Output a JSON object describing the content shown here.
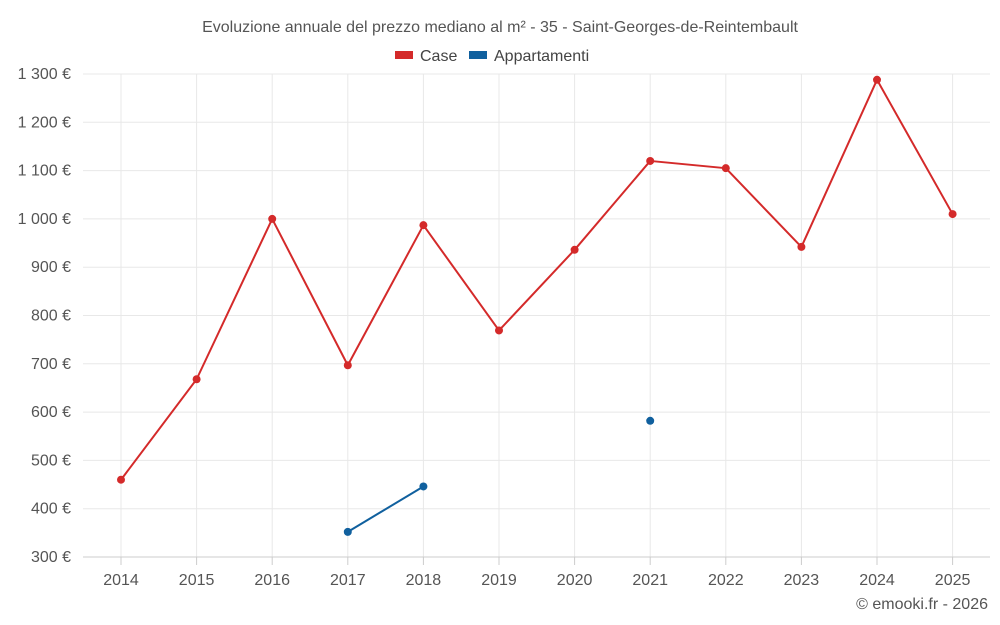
{
  "chart_data": {
    "type": "line",
    "title": "Evoluzione annuale del prezzo mediano al m² - 35 - Saint-Georges-de-Reintembault",
    "categories": [
      "2014",
      "2015",
      "2016",
      "2017",
      "2018",
      "2019",
      "2020",
      "2021",
      "2022",
      "2023",
      "2024",
      "2025"
    ],
    "series": [
      {
        "name": "Case",
        "color": "#d42a2a",
        "values": [
          460,
          668,
          1000,
          697,
          987,
          769,
          936,
          1120,
          1105,
          942,
          1288,
          1010
        ]
      },
      {
        "name": "Appartamenti",
        "color": "#10609e",
        "values": [
          null,
          null,
          null,
          352,
          446,
          null,
          null,
          582,
          null,
          null,
          null,
          null
        ]
      }
    ],
    "ylim": [
      300,
      1300
    ],
    "yticks": [
      300,
      400,
      500,
      600,
      700,
      800,
      900,
      1000,
      1100,
      1200,
      1300
    ],
    "ytick_labels": [
      "300 €",
      "400 €",
      "500 €",
      "600 €",
      "700 €",
      "800 €",
      "900 €",
      "1 000 €",
      "1 100 €",
      "1 200 €",
      "1 300 €"
    ],
    "grid": true,
    "legend_position": "top-center",
    "xlabel": "",
    "ylabel": ""
  },
  "credit": "© emooki.fr - 2026"
}
